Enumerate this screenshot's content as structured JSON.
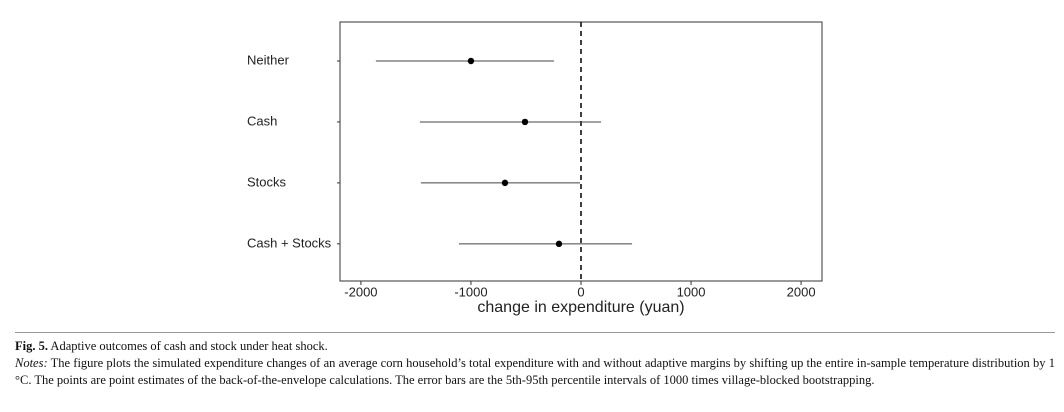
{
  "chart_data": {
    "type": "dot-errorbar",
    "xlabel": "change in expenditure (yuan)",
    "categories": [
      "Neither",
      "Cash",
      "Stocks",
      "Cash + Stocks"
    ],
    "series": [
      {
        "color": "#000000",
        "values": [
          -1000,
          -509,
          -691,
          -200
        ],
        "lower": [
          -1864,
          -1464,
          -1455,
          -1109
        ],
        "upper": [
          -245,
          182,
          -9,
          464
        ]
      }
    ],
    "xlim": [
      -2190,
      2190
    ],
    "xticks": [
      -2000,
      -1000,
      0,
      1000,
      2000
    ],
    "vline": 0
  },
  "caption": {
    "label": "Fig. 5.",
    "title": "Adaptive outcomes of cash and stock under heat shock.",
    "notes_label": "Notes:",
    "notes": "The figure plots the simulated expenditure changes of an average corn household’s total expenditure with and without adaptive margins by shifting up the entire in-sample temperature distribution by 1 °C. The points are point estimates of the back-of-the-envelope calculations. The error bars are the 5th-95th percentile intervals of 1000 times village-blocked bootstrapping."
  }
}
